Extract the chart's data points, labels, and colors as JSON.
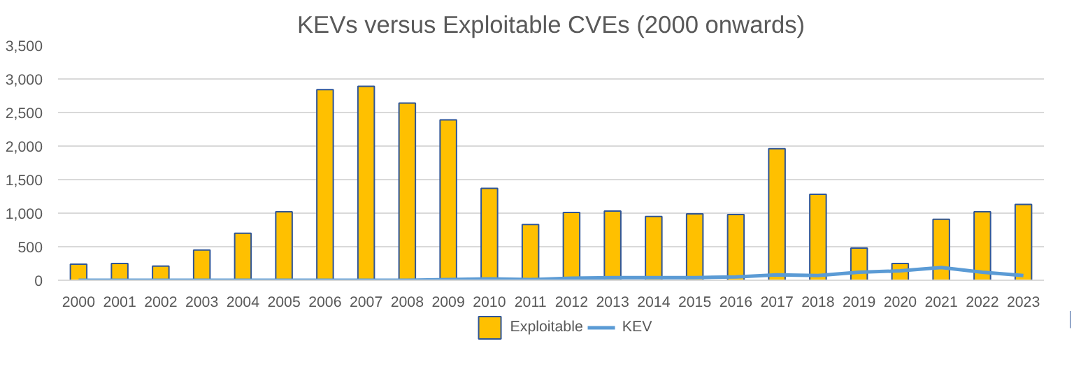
{
  "chart_data": {
    "type": "bar",
    "title": "KEVs versus Exploitable CVEs (2000 onwards)",
    "categories": [
      "2000",
      "2001",
      "2002",
      "2003",
      "2004",
      "2005",
      "2006",
      "2007",
      "2008",
      "2009",
      "2010",
      "2011",
      "2012",
      "2013",
      "2014",
      "2015",
      "2016",
      "2017",
      "2018",
      "2019",
      "2020",
      "2021",
      "2022",
      "2023"
    ],
    "series": [
      {
        "name": "Exploitable",
        "color": "#ffc000",
        "values": [
          240,
          250,
          210,
          450,
          700,
          1020,
          2840,
          2890,
          2640,
          2390,
          1370,
          830,
          1010,
          1030,
          950,
          990,
          980,
          1960,
          1280,
          480,
          250,
          910,
          1020,
          1130
        ]
      },
      {
        "name": "KEV",
        "type": "line",
        "color": "#5b9bd5",
        "values": [
          0,
          0,
          0,
          0,
          0,
          0,
          0,
          0,
          0,
          10,
          20,
          10,
          30,
          40,
          40,
          40,
          50,
          80,
          70,
          120,
          140,
          190,
          120,
          70
        ]
      }
    ],
    "ylim": [
      0,
      3500
    ],
    "yticks": [
      {
        "value": 0,
        "label": "0"
      },
      {
        "value": 500,
        "label": "500"
      },
      {
        "value": 1000,
        "label": "1,000"
      },
      {
        "value": 1500,
        "label": "1,500"
      },
      {
        "value": 2000,
        "label": "2,000"
      },
      {
        "value": 2500,
        "label": "2,500"
      },
      {
        "value": 3000,
        "label": "3,000"
      },
      {
        "value": 3500,
        "label": "3,500"
      }
    ],
    "grid": "y",
    "legend": "bottom"
  }
}
